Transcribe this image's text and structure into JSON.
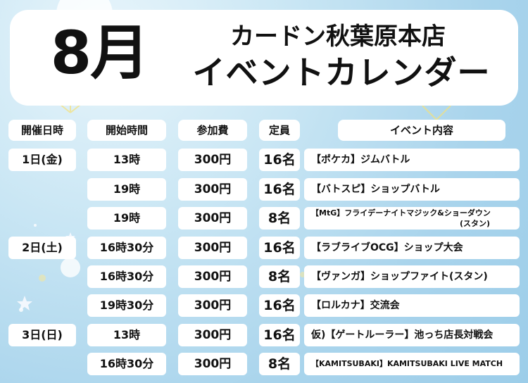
{
  "header": {
    "month": "8月",
    "store": "カードン秋葉原本店",
    "title": "イベントカレンダー"
  },
  "columns": [
    "開催日時",
    "開始時間",
    "参加費",
    "定員",
    "イベント内容"
  ],
  "rows": [
    {
      "date": "1日(金)",
      "time": "13時",
      "fee": "300円",
      "capacity": "16名",
      "event": "【ポケカ】ジムバトル"
    },
    {
      "date": "",
      "time": "19時",
      "fee": "300円",
      "capacity": "16名",
      "event": "【バトスピ】ショップバトル"
    },
    {
      "date": "",
      "time": "19時",
      "fee": "300円",
      "capacity": "8名",
      "event": "【MtG】フライデーナイトマジック&ショーダウン",
      "event_line2": "(スタン)"
    },
    {
      "date": "2日(土)",
      "time": "16時30分",
      "fee": "300円",
      "capacity": "16名",
      "event": "【ラブライブOCG】ショップ大会"
    },
    {
      "date": "",
      "time": "16時30分",
      "fee": "300円",
      "capacity": "8名",
      "event": "【ヴァンガ】ショップファイト(スタン)"
    },
    {
      "date": "",
      "time": "19時30分",
      "fee": "300円",
      "capacity": "16名",
      "event": "【ロルカナ】交流会"
    },
    {
      "date": "3日(日)",
      "time": "13時",
      "fee": "300円",
      "capacity": "16名",
      "event": "仮)【ゲートルーラー】池っち店長対戦会"
    },
    {
      "date": "",
      "time": "16時30分",
      "fee": "300円",
      "capacity": "8名",
      "event": "【KAMITSUBAKI】KAMITSUBAKI LIVE MATCH"
    }
  ]
}
